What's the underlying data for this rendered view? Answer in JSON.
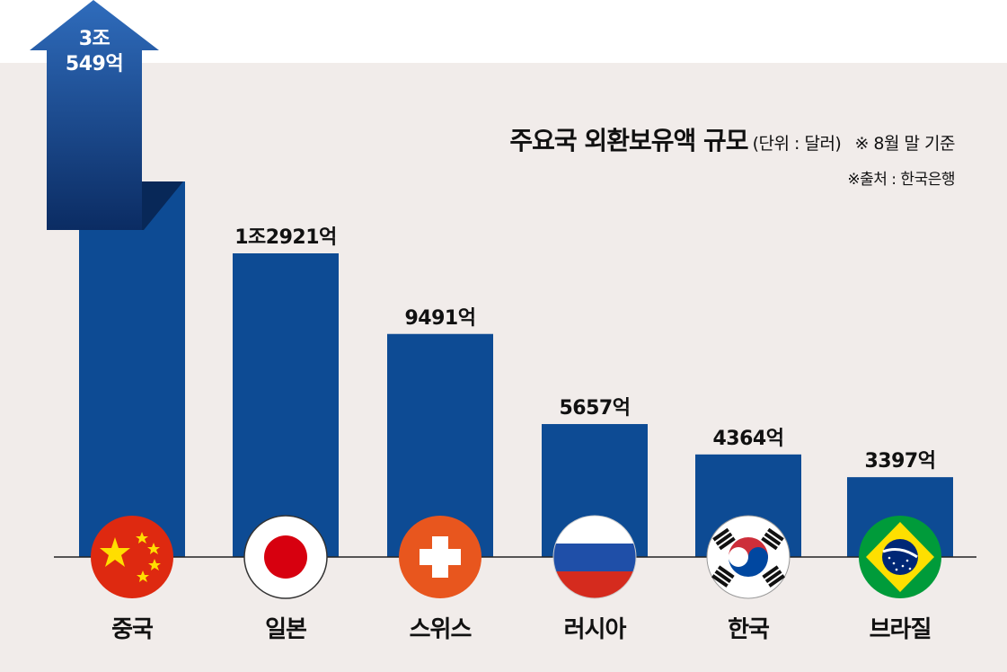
{
  "chart_data": {
    "type": "bar",
    "title": "주요국 외환보유액 규모",
    "unit": "(단위 : 달러)",
    "note": "※ 8월 말 기준",
    "source": "※출처 : 한국은행",
    "categories": [
      "중국",
      "일본",
      "스위스",
      "러시아",
      "한국",
      "브라질"
    ],
    "values": [
      30549,
      12921,
      9491,
      5657,
      4364,
      3397
    ],
    "value_unit": "억 달러",
    "data_labels": [
      "3조\n549억",
      "1조2921억",
      "9491억",
      "5657억",
      "4364억",
      "3397억"
    ],
    "flags": [
      "china-flag-icon",
      "japan-flag-icon",
      "switzerland-flag-icon",
      "russia-flag-icon",
      "korea-flag-icon",
      "brazil-flag-icon"
    ],
    "broken_bar": "중국",
    "colors": {
      "bar": "#0d4b94",
      "arrow_top": "#2b65b3",
      "arrow_bottom": "#0a2f66",
      "background": "#f1ecea"
    }
  }
}
